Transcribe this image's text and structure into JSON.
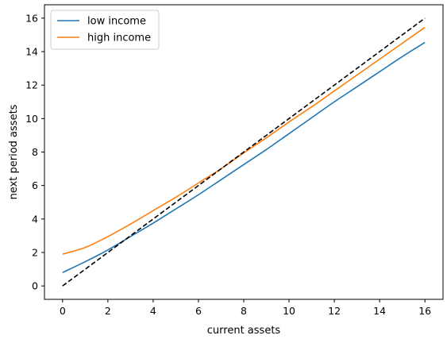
{
  "chart_data": {
    "type": "line",
    "title": "",
    "xlabel": "current assets",
    "ylabel": "next period assets",
    "xlim": [
      -0.8,
      16.8
    ],
    "ylim": [
      -0.8,
      16.8
    ],
    "xticks": [
      0,
      2,
      4,
      6,
      8,
      10,
      12,
      14,
      16
    ],
    "yticks": [
      0,
      2,
      4,
      6,
      8,
      10,
      12,
      14,
      16
    ],
    "grid": false,
    "legend_position": "top-left",
    "series": [
      {
        "name": "low income",
        "color": "#1f77b4",
        "style": "solid",
        "x": [
          0,
          1,
          2,
          3,
          4,
          5,
          6,
          7,
          8,
          9,
          10,
          11,
          12,
          13,
          14,
          15,
          16
        ],
        "y": [
          0.8,
          1.45,
          2.15,
          2.95,
          3.75,
          4.6,
          5.45,
          6.35,
          7.25,
          8.15,
          9.1,
          10.05,
          11.0,
          11.9,
          12.8,
          13.7,
          14.55
        ]
      },
      {
        "name": "high income",
        "color": "#ff7f0e",
        "style": "solid",
        "x": [
          0,
          1,
          2,
          3,
          4,
          5,
          6,
          7,
          8,
          9,
          10,
          11,
          12,
          13,
          14,
          15,
          16
        ],
        "y": [
          1.9,
          2.3,
          2.95,
          3.7,
          4.5,
          5.3,
          6.15,
          7.0,
          7.95,
          8.85,
          9.8,
          10.7,
          11.65,
          12.6,
          13.55,
          14.5,
          15.45
        ]
      },
      {
        "name": "",
        "color": "#000000",
        "style": "dashed",
        "x": [
          0,
          16
        ],
        "y": [
          0,
          16
        ]
      }
    ]
  }
}
